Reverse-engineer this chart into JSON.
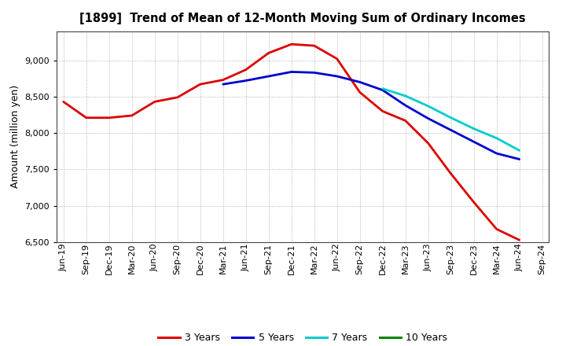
{
  "title": "[1899]  Trend of Mean of 12-Month Moving Sum of Ordinary Incomes",
  "ylabel": "Amount (million yen)",
  "ylim": [
    6500,
    9400
  ],
  "yticks": [
    6500,
    7000,
    7500,
    8000,
    8500,
    9000
  ],
  "background_color": "#ffffff",
  "grid_color": "#999999",
  "x_labels": [
    "Jun-19",
    "Sep-19",
    "Dec-19",
    "Mar-20",
    "Jun-20",
    "Sep-20",
    "Dec-20",
    "Mar-21",
    "Jun-21",
    "Sep-21",
    "Dec-21",
    "Mar-22",
    "Jun-22",
    "Sep-22",
    "Dec-22",
    "Mar-23",
    "Jun-23",
    "Sep-23",
    "Dec-23",
    "Mar-24",
    "Jun-24",
    "Sep-24"
  ],
  "series": {
    "3 Years": {
      "color": "#dd0000",
      "linewidth": 2.0,
      "data": [
        8430,
        8210,
        8210,
        8240,
        8430,
        8490,
        8670,
        8730,
        8870,
        9100,
        9220,
        9200,
        9020,
        8560,
        8300,
        8170,
        7860,
        7440,
        7050,
        6680,
        6530,
        null
      ]
    },
    "5 Years": {
      "color": "#0000cc",
      "linewidth": 2.0,
      "data": [
        null,
        null,
        null,
        null,
        null,
        null,
        null,
        8670,
        8720,
        8780,
        8840,
        8830,
        8780,
        8700,
        8590,
        8380,
        8200,
        8040,
        7880,
        7720,
        7640,
        null
      ]
    },
    "7 Years": {
      "color": "#00cccc",
      "linewidth": 2.0,
      "data": [
        null,
        null,
        null,
        null,
        null,
        null,
        null,
        null,
        null,
        null,
        null,
        null,
        null,
        null,
        8610,
        8510,
        8370,
        8210,
        8060,
        7930,
        7760,
        null
      ]
    },
    "10 Years": {
      "color": "#008800",
      "linewidth": 2.0,
      "data": [
        null,
        null,
        null,
        null,
        null,
        null,
        null,
        null,
        null,
        null,
        null,
        null,
        null,
        null,
        null,
        null,
        null,
        null,
        null,
        null,
        null,
        null
      ]
    }
  },
  "legend_labels": [
    "3 Years",
    "5 Years",
    "7 Years",
    "10 Years"
  ],
  "legend_colors": [
    "#dd0000",
    "#0000cc",
    "#00cccc",
    "#008800"
  ],
  "title_fontsize": 10.5,
  "ylabel_fontsize": 9,
  "tick_fontsize": 8
}
